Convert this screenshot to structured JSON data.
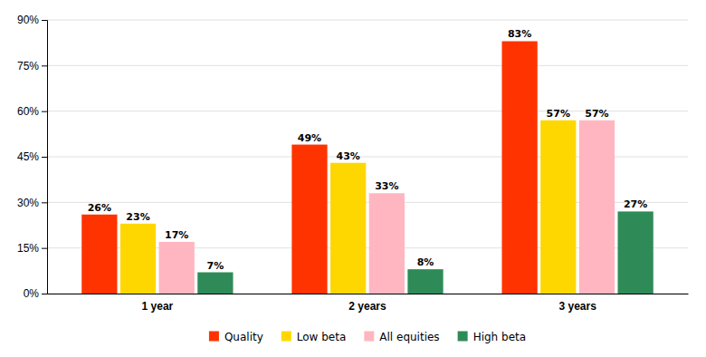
{
  "chart_data": {
    "type": "bar",
    "categories": [
      "1 year",
      "2 years",
      "3 years"
    ],
    "series": [
      {
        "name": "Quality",
        "color": "#FF3300",
        "values": [
          26,
          49,
          83
        ],
        "value_labels": [
          "26%",
          "49%",
          "83%"
        ]
      },
      {
        "name": "Low beta",
        "color": "#FFD700",
        "values": [
          23,
          43,
          57
        ],
        "value_labels": [
          "23%",
          "43%",
          "57%"
        ]
      },
      {
        "name": "All equities",
        "color": "#FFB6C1",
        "values": [
          17,
          33,
          57
        ],
        "value_labels": [
          "17%",
          "33%",
          "57%"
        ]
      },
      {
        "name": "High beta",
        "color": "#2E8B57",
        "values": [
          7,
          8,
          27
        ],
        "value_labels": [
          "7%",
          "8%",
          "27%"
        ]
      }
    ],
    "ylim": [
      0,
      90
    ],
    "yticks": [
      {
        "value": 0,
        "label": "0%"
      },
      {
        "value": 15,
        "label": "15%"
      },
      {
        "value": 30,
        "label": "30%"
      },
      {
        "value": 45,
        "label": "45%"
      },
      {
        "value": 60,
        "label": "60%"
      },
      {
        "value": 75,
        "label": "75%"
      },
      {
        "value": 90,
        "label": "90%"
      }
    ],
    "grid": true,
    "data_labels": true,
    "legend": "bottom"
  }
}
